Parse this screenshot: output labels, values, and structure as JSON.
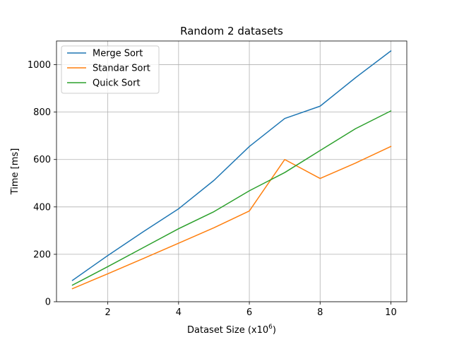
{
  "chart_data": {
    "type": "line",
    "title": "Random 2 datasets",
    "xlabel": "Dataset Size (x10",
    "xlabel_superscript": "6",
    "xlabel_suffix": ")",
    "ylabel": "Time [ms]",
    "x": [
      1,
      2,
      3,
      4,
      5,
      6,
      7,
      8,
      9,
      10
    ],
    "xlim": [
      0.55,
      10.45
    ],
    "ylim": [
      0,
      1100
    ],
    "xticks": [
      2,
      4,
      6,
      8,
      10
    ],
    "yticks": [
      0,
      200,
      400,
      600,
      800,
      1000
    ],
    "xtick_labels": [
      "2",
      "4",
      "6",
      "8",
      "10"
    ],
    "ytick_labels": [
      "0",
      "200",
      "400",
      "600",
      "800",
      "1000"
    ],
    "grid": true,
    "legend_position": "upper-left",
    "series": [
      {
        "name": "Merge Sort",
        "color": "#1f77b4",
        "values": [
          90,
          195,
          295,
          392,
          512,
          655,
          773,
          825,
          945,
          1058
        ]
      },
      {
        "name": "Standar Sort",
        "color": "#ff7f0e",
        "values": [
          55,
          118,
          182,
          247,
          312,
          383,
          600,
          520,
          585,
          655
        ]
      },
      {
        "name": "Quick Sort",
        "color": "#2ca02c",
        "values": [
          70,
          148,
          228,
          308,
          380,
          468,
          545,
          638,
          730,
          805
        ]
      }
    ]
  }
}
